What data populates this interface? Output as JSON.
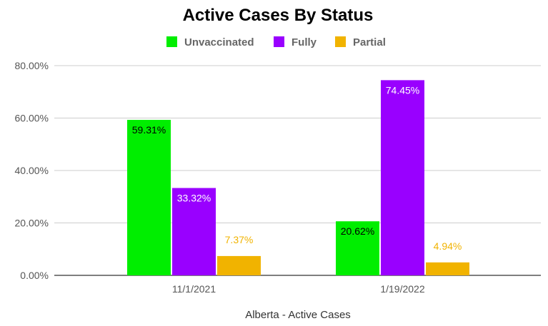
{
  "chart_data": {
    "type": "bar",
    "title": "Active Cases By Status",
    "xlabel": "Alberta - Active Cases",
    "ylabel": "",
    "categories": [
      "11/1/2021",
      "1/19/2022"
    ],
    "series": [
      {
        "name": "Unvaccinated",
        "color": "#00ee00",
        "values": [
          59.31,
          20.62
        ],
        "labels": [
          "59.31%",
          "20.62%"
        ]
      },
      {
        "name": "Fully",
        "color": "#9900ff",
        "values": [
          33.32,
          74.45
        ],
        "labels": [
          "33.32%",
          "74.45%"
        ]
      },
      {
        "name": "Partial",
        "color": "#f1b300",
        "values": [
          7.37,
          4.94
        ],
        "labels": [
          "7.37%",
          "4.94%"
        ]
      }
    ],
    "ylim": [
      0,
      80
    ],
    "yticks": [
      0,
      20,
      40,
      60,
      80
    ],
    "ytick_labels": [
      "0.00%",
      "20.00%",
      "40.00%",
      "60.00%",
      "80.00%"
    ],
    "grid": true,
    "legend_position": "top"
  }
}
